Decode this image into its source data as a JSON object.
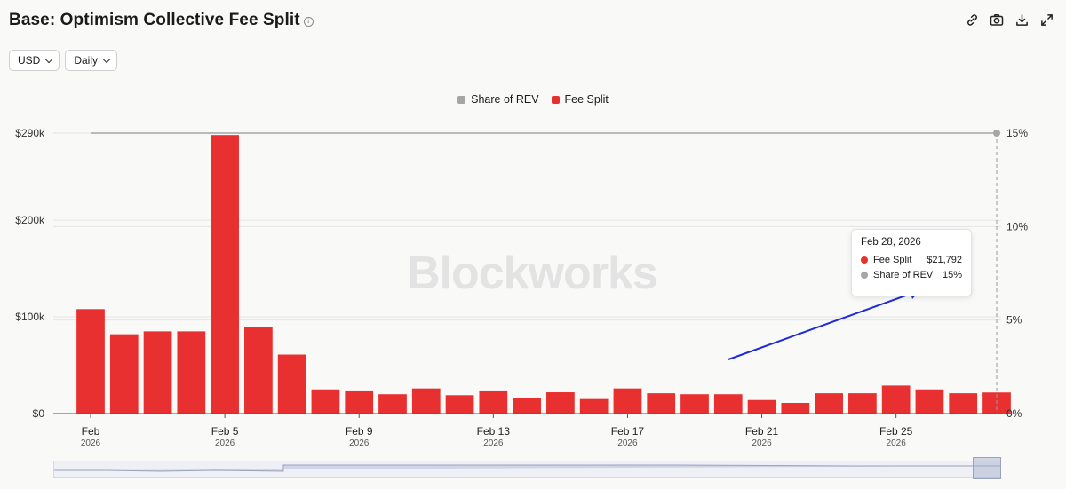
{
  "header": {
    "title": "Base: Optimism Collective Fee Split",
    "info_icon": "info-circle-icon"
  },
  "toolbar": {
    "icons": [
      "link-icon",
      "camera-icon",
      "download-icon",
      "expand-icon"
    ]
  },
  "controls": {
    "currency": "USD",
    "interval": "Daily"
  },
  "watermark": "Blockworks",
  "colors": {
    "fee_split": "#e83030",
    "share_of_rev": "#a6a6a6",
    "annotation_arrow": "#1f2bd6"
  },
  "tooltip": {
    "date": "Feb 28, 2026",
    "rows": [
      {
        "name": "Fee Split",
        "value": "$21,792",
        "color": "#e83030"
      },
      {
        "name": "Share of REV",
        "value": "15%",
        "color": "#a6a6a6"
      }
    ]
  },
  "chart_data": {
    "type": "bar",
    "legend_position": "top-center",
    "grid": true,
    "categories": [
      "Feb 1",
      "Feb 2",
      "Feb 3",
      "Feb 4",
      "Feb 5",
      "Feb 6",
      "Feb 7",
      "Feb 8",
      "Feb 9",
      "Feb 10",
      "Feb 11",
      "Feb 12",
      "Feb 13",
      "Feb 14",
      "Feb 15",
      "Feb 16",
      "Feb 17",
      "Feb 18",
      "Feb 19",
      "Feb 20",
      "Feb 21",
      "Feb 22",
      "Feb 23",
      "Feb 24",
      "Feb 25",
      "Feb 26",
      "Feb 27",
      "Feb 28"
    ],
    "series": [
      {
        "name": "Fee Split",
        "type": "bar",
        "axis": "left",
        "values": [
          108000,
          82000,
          85000,
          85000,
          288000,
          89000,
          61000,
          25000,
          23000,
          20000,
          26000,
          19000,
          23000,
          16000,
          22000,
          15000,
          26000,
          21000,
          20000,
          20000,
          14000,
          11000,
          21000,
          21000,
          29000,
          25000,
          21000,
          21792
        ]
      },
      {
        "name": "Share of REV",
        "type": "line",
        "axis": "right",
        "values": [
          15,
          15,
          15,
          15,
          15,
          15,
          15,
          15,
          15,
          15,
          15,
          15,
          15,
          15,
          15,
          15,
          15,
          15,
          15,
          15,
          15,
          15,
          15,
          15,
          15,
          15,
          15,
          15
        ]
      }
    ],
    "y_left": {
      "ticks": [
        0,
        100000,
        200000,
        290000
      ],
      "tick_labels": [
        "$0",
        "$100k",
        "$200k",
        "$290k"
      ],
      "ylim": [
        0,
        290000
      ]
    },
    "y_right": {
      "ticks": [
        0,
        5,
        10,
        15
      ],
      "tick_labels": [
        "0%",
        "5%",
        "10%",
        "15%"
      ],
      "ylim": [
        0,
        15
      ]
    },
    "x_ticks": [
      {
        "index": 0,
        "label": "Feb",
        "year": "2026"
      },
      {
        "index": 4,
        "label": "Feb 5",
        "year": "2026"
      },
      {
        "index": 8,
        "label": "Feb 9",
        "year": "2026"
      },
      {
        "index": 12,
        "label": "Feb 13",
        "year": "2026"
      },
      {
        "index": 16,
        "label": "Feb 17",
        "year": "2026"
      },
      {
        "index": 20,
        "label": "Feb 21",
        "year": "2026"
      },
      {
        "index": 24,
        "label": "Feb 25",
        "year": "2026"
      }
    ],
    "highlight_index": 27
  }
}
